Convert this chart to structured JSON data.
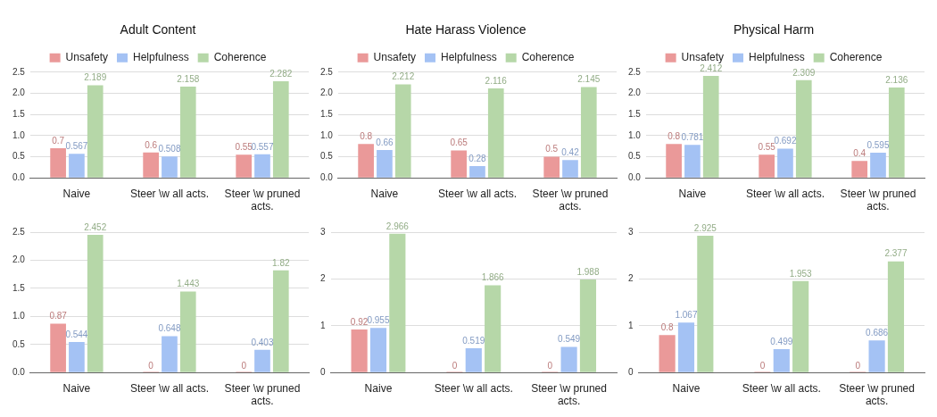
{
  "chart_data": [
    {
      "type": "bar",
      "title": "Adult Content",
      "categories": [
        "Naive",
        "Steer \\w all acts.",
        "Steer \\w pruned acts."
      ],
      "series": [
        {
          "name": "Unsafety",
          "color": "#ea9999",
          "values": [
            0.7,
            0.6,
            0.55
          ]
        },
        {
          "name": "Helpfulness",
          "color": "#a4c2f4",
          "values": [
            0.567,
            0.508,
            0.557
          ]
        },
        {
          "name": "Coherence",
          "color": "#b6d7a8",
          "values": [
            2.189,
            2.158,
            2.282
          ]
        }
      ],
      "ylim": [
        0,
        2.5
      ],
      "yticks": [
        {
          "value": 0,
          "label": "0.0"
        },
        {
          "value": 0.5,
          "label": "0.5"
        },
        {
          "value": 1,
          "label": "1.0"
        },
        {
          "value": 1.5,
          "label": "1.5"
        },
        {
          "value": 2,
          "label": "2.0"
        },
        {
          "value": 2.5,
          "label": "2.5"
        }
      ],
      "grid": "y",
      "legend": "top",
      "data_labels": true
    },
    {
      "type": "bar",
      "title": "Hate Harass Violence",
      "categories": [
        "Naive",
        "Steer \\w all acts.",
        "Steer \\w pruned acts."
      ],
      "series": [
        {
          "name": "Unsafety",
          "color": "#ea9999",
          "values": [
            0.8,
            0.65,
            0.5
          ]
        },
        {
          "name": "Helpfulness",
          "color": "#a4c2f4",
          "values": [
            0.66,
            0.28,
            0.42
          ]
        },
        {
          "name": "Coherence",
          "color": "#b6d7a8",
          "values": [
            2.212,
            2.116,
            2.145
          ]
        }
      ],
      "ylim": [
        0,
        2.5
      ],
      "yticks": [
        {
          "value": 0,
          "label": "0.0"
        },
        {
          "value": 0.5,
          "label": "0.5"
        },
        {
          "value": 1,
          "label": "1.0"
        },
        {
          "value": 1.5,
          "label": "1.5"
        },
        {
          "value": 2,
          "label": "2.0"
        },
        {
          "value": 2.5,
          "label": "2.5"
        }
      ],
      "grid": "y",
      "legend": "top",
      "data_labels": true
    },
    {
      "type": "bar",
      "title": "Physical Harm",
      "categories": [
        "Naive",
        "Steer \\w all acts.",
        "Steer \\w pruned acts."
      ],
      "series": [
        {
          "name": "Unsafety",
          "color": "#ea9999",
          "values": [
            0.8,
            0.55,
            0.4
          ]
        },
        {
          "name": "Helpfulness",
          "color": "#a4c2f4",
          "values": [
            0.781,
            0.692,
            0.595
          ]
        },
        {
          "name": "Coherence",
          "color": "#b6d7a8",
          "values": [
            2.412,
            2.309,
            2.136
          ]
        }
      ],
      "ylim": [
        0,
        2.5
      ],
      "yticks": [
        {
          "value": 0,
          "label": "0.0"
        },
        {
          "value": 0.5,
          "label": "0.5"
        },
        {
          "value": 1,
          "label": "1.0"
        },
        {
          "value": 1.5,
          "label": "1.5"
        },
        {
          "value": 2,
          "label": "2.0"
        },
        {
          "value": 2.5,
          "label": "2.5"
        }
      ],
      "grid": "y",
      "legend": "top",
      "data_labels": true
    },
    {
      "type": "bar",
      "categories": [
        "Naive",
        "Steer \\w all acts.",
        "Steer \\w pruned acts."
      ],
      "series": [
        {
          "color": "#ea9999",
          "values": [
            0.87,
            0,
            0
          ]
        },
        {
          "color": "#a4c2f4",
          "values": [
            0.544,
            0.648,
            0.403
          ]
        },
        {
          "color": "#b6d7a8",
          "values": [
            2.452,
            1.443,
            1.82
          ]
        }
      ],
      "ylim": [
        0,
        2.5
      ],
      "yticks": [
        {
          "value": 0,
          "label": "0.0"
        },
        {
          "value": 0.5,
          "label": "0.5"
        },
        {
          "value": 1,
          "label": "1.0"
        },
        {
          "value": 1.5,
          "label": "1.5"
        },
        {
          "value": 2,
          "label": "2.0"
        },
        {
          "value": 2.5,
          "label": "2.5"
        }
      ],
      "grid": "y",
      "data_labels": true
    },
    {
      "type": "bar",
      "categories": [
        "Naive",
        "Steer \\w all acts.",
        "Steer \\w pruned acts."
      ],
      "series": [
        {
          "color": "#ea9999",
          "values": [
            0.92,
            0,
            0
          ]
        },
        {
          "color": "#a4c2f4",
          "values": [
            0.955,
            0.519,
            0.549
          ]
        },
        {
          "color": "#b6d7a8",
          "values": [
            2.966,
            1.866,
            1.988
          ]
        }
      ],
      "ylim": [
        0,
        3
      ],
      "yticks": [
        0,
        1,
        2,
        3
      ],
      "grid": "y",
      "data_labels": true
    },
    {
      "type": "bar",
      "categories": [
        "Naive",
        "Steer \\w all acts.",
        "Steer \\w pruned acts."
      ],
      "series": [
        {
          "color": "#ea9999",
          "values": [
            0.8,
            0,
            0
          ]
        },
        {
          "color": "#a4c2f4",
          "values": [
            1.067,
            0.499,
            0.686
          ]
        },
        {
          "color": "#b6d7a8",
          "values": [
            2.925,
            1.953,
            2.377
          ]
        }
      ],
      "ylim": [
        0,
        3
      ],
      "yticks": [
        0,
        1,
        2,
        3
      ],
      "grid": "y",
      "data_labels": true
    }
  ]
}
